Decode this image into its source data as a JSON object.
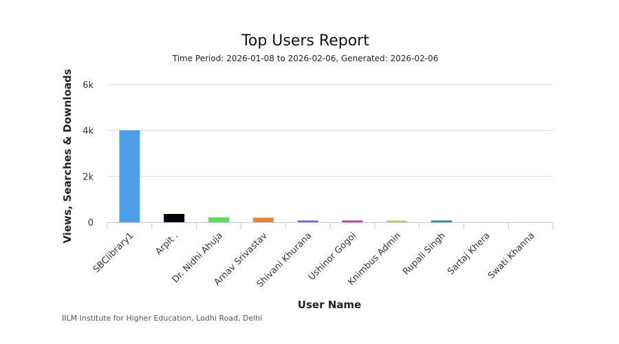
{
  "chart_data": {
    "type": "bar",
    "title": "Top Users Report",
    "subtitle": "Time Period: 2026-01-08 to 2026-02-06, Generated: 2026-02-06",
    "xlabel": "User Name",
    "ylabel": "Views, Searches & Downloads",
    "ylim": [
      0,
      6000
    ],
    "yticks": [
      0,
      2000,
      4000,
      6000
    ],
    "ytick_labels": [
      "0",
      "2k",
      "4k",
      "6k"
    ],
    "categories": [
      "SBClibrary1",
      "Arpit .",
      "Dr. Nidhi Ahuja",
      "Arnav Srivastav",
      "Shivani Khurana",
      "Ushinor Gogoi",
      "Knimbus Admin",
      "Rupali Singh",
      "Sartaj Khera",
      "Swati Khanna"
    ],
    "values": [
      4010,
      360,
      210,
      200,
      60,
      55,
      50,
      30,
      0,
      0
    ],
    "colors": [
      "#4f9ee8",
      "#000000",
      "#5fdd55",
      "#f0862e",
      "#6b66dd",
      "#e8305e",
      "#d8c43a",
      "#1a8e8e",
      "#999999",
      "#999999"
    ],
    "grid": true,
    "legend": "none",
    "footer": "IILM Institute for Higher Education, Lodhi Road, Delhi"
  }
}
